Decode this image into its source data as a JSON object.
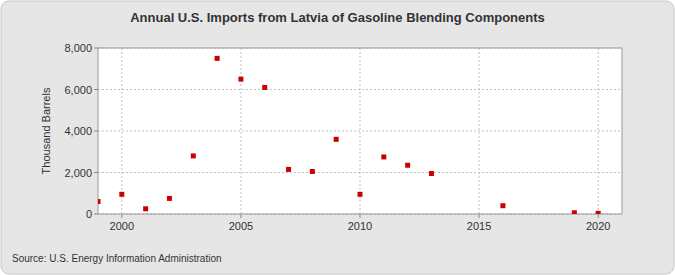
{
  "chart_data": {
    "type": "scatter",
    "title": "Annual U.S. Imports from Latvia of Gasoline Blending Components",
    "y_label": "Thousand Barrels",
    "source": "Source: U.S. Energy Information Administration",
    "x": [
      1999,
      2000,
      2001,
      2002,
      2003,
      2004,
      2005,
      2006,
      2007,
      2008,
      2009,
      2010,
      2011,
      2012,
      2013,
      2016,
      2019,
      2020
    ],
    "values": [
      600,
      950,
      250,
      750,
      2800,
      7500,
      6500,
      6100,
      2150,
      2050,
      3600,
      950,
      2750,
      2350,
      1950,
      400,
      60,
      30
    ],
    "color": "#cc0000",
    "marker": "square",
    "xlim": [
      1999,
      2021
    ],
    "xticks": [
      2000,
      2005,
      2010,
      2015,
      2020
    ],
    "ylim": [
      0,
      8000
    ],
    "yticks": [
      0,
      {
        "value": 2000,
        "label": "2,000"
      },
      {
        "value": 4000,
        "label": "4,000"
      },
      {
        "value": 6000,
        "label": "6,000"
      },
      {
        "value": 8000,
        "label": "8,000"
      }
    ],
    "grid": true
  }
}
